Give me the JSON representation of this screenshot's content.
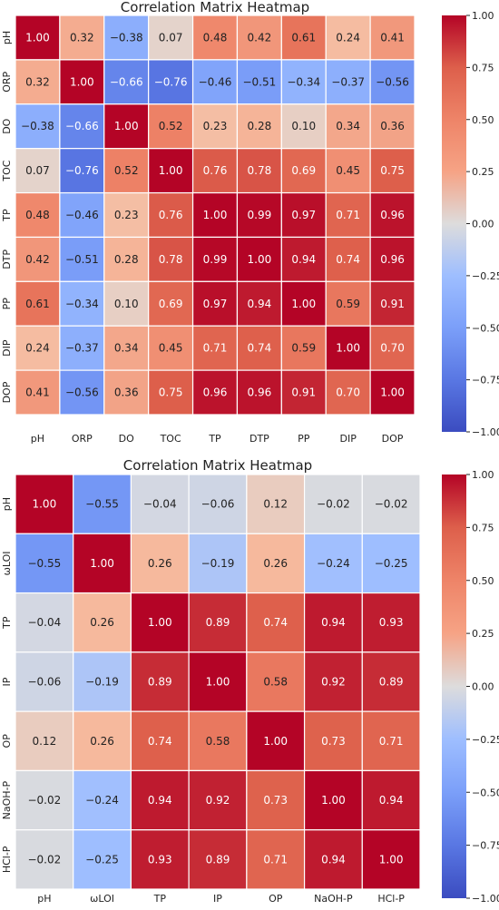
{
  "chart_data": [
    {
      "type": "heatmap",
      "title": "Correlation Matrix Heatmap",
      "labels": [
        "pH",
        "ORP",
        "DO",
        "TOC",
        "TP",
        "DTP",
        "PP",
        "DIP",
        "DOP"
      ],
      "values": [
        [
          1.0,
          0.32,
          -0.38,
          0.07,
          0.48,
          0.42,
          0.61,
          0.24,
          0.41
        ],
        [
          0.32,
          1.0,
          -0.66,
          -0.76,
          -0.46,
          -0.51,
          -0.34,
          -0.37,
          -0.56
        ],
        [
          -0.38,
          -0.66,
          1.0,
          0.52,
          0.23,
          0.28,
          0.1,
          0.34,
          0.36
        ],
        [
          0.07,
          -0.76,
          0.52,
          1.0,
          0.76,
          0.78,
          0.69,
          0.45,
          0.75
        ],
        [
          0.48,
          -0.46,
          0.23,
          0.76,
          1.0,
          0.99,
          0.97,
          0.71,
          0.96
        ],
        [
          0.42,
          -0.51,
          0.28,
          0.78,
          0.99,
          1.0,
          0.94,
          0.74,
          0.96
        ],
        [
          0.61,
          -0.34,
          0.1,
          0.69,
          0.97,
          0.94,
          1.0,
          0.59,
          0.91
        ],
        [
          0.24,
          -0.37,
          0.34,
          0.45,
          0.71,
          0.74,
          0.59,
          1.0,
          0.7
        ],
        [
          0.41,
          -0.56,
          0.36,
          0.75,
          0.96,
          0.96,
          0.91,
          0.7,
          1.0
        ]
      ],
      "colormap": "coolwarm",
      "vmin": -1.0,
      "vmax": 1.0,
      "colorbar_ticks": [
        "1.00",
        "0.75",
        "0.50",
        "0.25",
        "0.00",
        "−0.25",
        "−0.50",
        "−0.75",
        "−1.00"
      ]
    },
    {
      "type": "heatmap",
      "title": "Correlation Matrix Heatmap",
      "labels": [
        "pH",
        "ωLOI",
        "TP",
        "IP",
        "OP",
        "NaOH-P",
        "HCl-P"
      ],
      "values": [
        [
          1.0,
          -0.55,
          -0.04,
          -0.06,
          0.12,
          -0.02,
          -0.02
        ],
        [
          -0.55,
          1.0,
          0.26,
          -0.19,
          0.26,
          -0.24,
          -0.25
        ],
        [
          -0.04,
          0.26,
          1.0,
          0.89,
          0.74,
          0.94,
          0.93
        ],
        [
          -0.06,
          -0.19,
          0.89,
          1.0,
          0.58,
          0.92,
          0.89
        ],
        [
          0.12,
          0.26,
          0.74,
          0.58,
          1.0,
          0.73,
          0.71
        ],
        [
          -0.02,
          -0.24,
          0.94,
          0.92,
          0.73,
          1.0,
          0.94
        ],
        [
          -0.02,
          -0.25,
          0.93,
          0.89,
          0.71,
          0.94,
          1.0
        ]
      ],
      "colormap": "coolwarm",
      "vmin": -1.0,
      "vmax": 1.0,
      "colorbar_ticks": [
        "1.00",
        "0.75",
        "0.50",
        "0.25",
        "0.00",
        "−0.25",
        "−0.50",
        "−0.75",
        "−1.00"
      ]
    }
  ]
}
